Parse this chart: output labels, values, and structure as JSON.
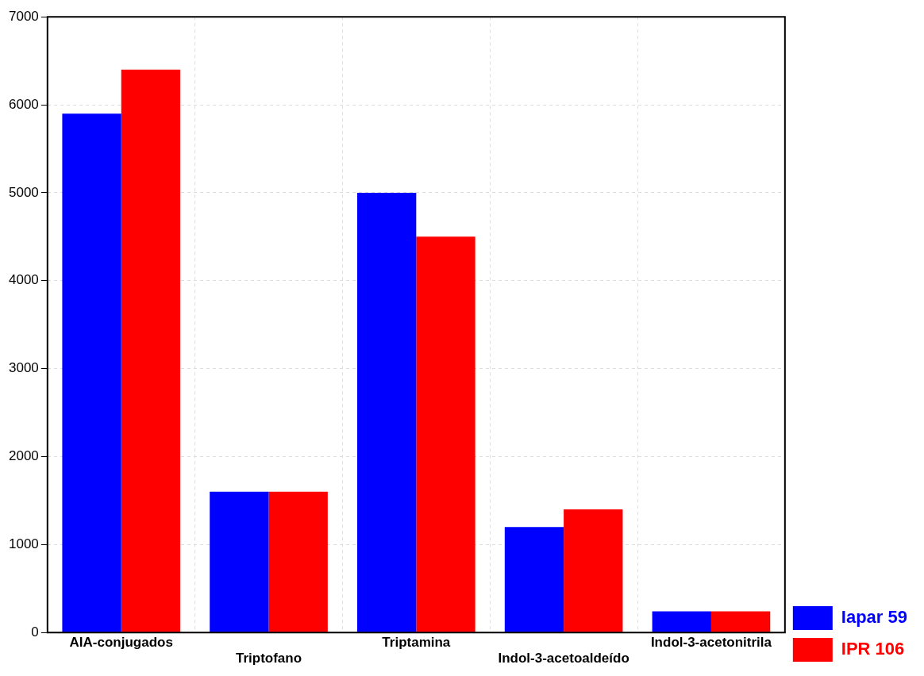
{
  "chart_data": {
    "type": "bar",
    "categories": [
      "AIA-conjugados",
      "Triptofano",
      "Triptamina",
      "Indol-3-acetoaldeído",
      "Indol-3-acetonitrila"
    ],
    "series": [
      {
        "name": "Iapar 59",
        "color": "#0000ff",
        "values": [
          5900,
          1600,
          5000,
          1200,
          240
        ]
      },
      {
        "name": "IPR 106",
        "color": "#ff0000",
        "values": [
          6400,
          1600,
          4500,
          1400,
          240
        ]
      }
    ],
    "ylim": [
      0,
      7000
    ],
    "yticks": [
      0,
      1000,
      2000,
      3000,
      4000,
      5000,
      6000,
      7000
    ],
    "grid": true,
    "legend": "bottom right"
  }
}
